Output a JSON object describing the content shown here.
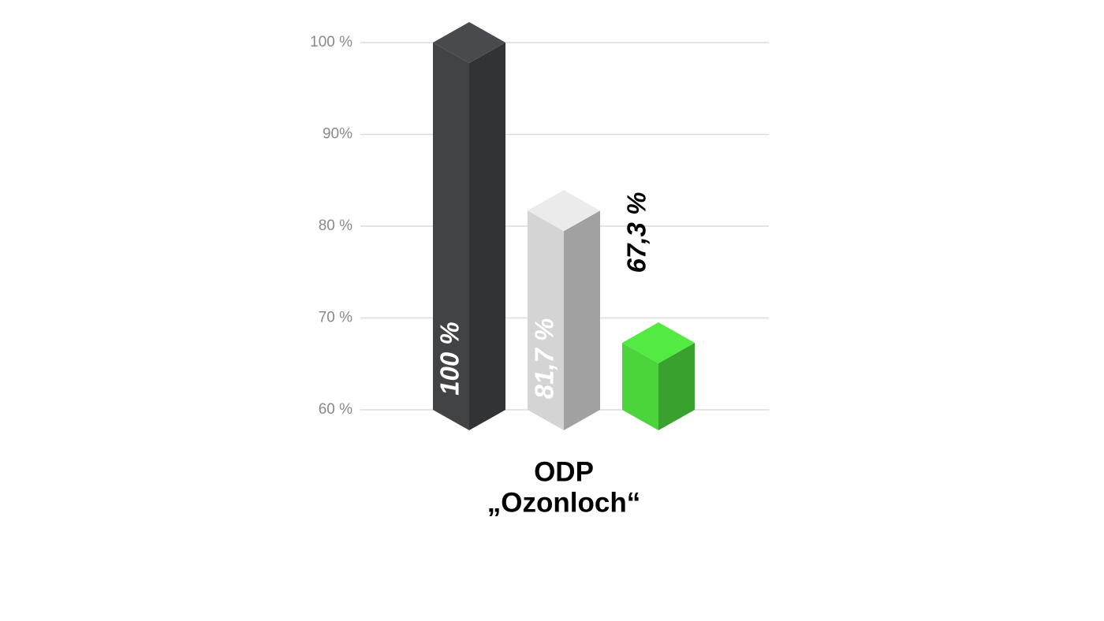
{
  "chart_data": {
    "type": "bar3d",
    "title": "ODP",
    "subtitle": "„Ozonloch“",
    "categories": [
      null,
      null,
      null
    ],
    "values": [
      100,
      81.7,
      67.3
    ],
    "value_labels": [
      "100 %",
      "81,7 %",
      "67,3 %"
    ],
    "colors": [
      "#3d3e40",
      "#c4c4c4",
      "#45c437"
    ],
    "ylim": [
      60,
      100
    ],
    "yticks": [
      {
        "value": 60,
        "label": "60 %"
      },
      {
        "value": 70,
        "label": "70 %"
      },
      {
        "value": 80,
        "label": "80 %"
      },
      {
        "value": 90,
        "label": "90%"
      },
      {
        "value": 100,
        "label": "100 %"
      }
    ],
    "grid": true
  }
}
